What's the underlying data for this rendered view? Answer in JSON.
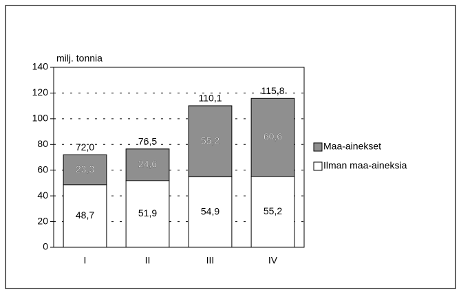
{
  "chart_data": {
    "type": "stacked_bar",
    "y_label": "milj. tonnia",
    "categories": [
      "I",
      "II",
      "III",
      "IV"
    ],
    "series": [
      {
        "name": "Ilman maa-aineksia",
        "color": "#ffffff",
        "values": [
          48.7,
          51.9,
          54.9,
          55.2
        ],
        "value_labels": [
          "48,7",
          "51,9",
          "54,9",
          "55,2"
        ]
      },
      {
        "name": "Maa-ainekset",
        "color": "#8f8f8f",
        "values": [
          23.3,
          24.6,
          55.2,
          60.6
        ],
        "value_labels": [
          "23,3",
          "24,6",
          "55,2",
          "60,6"
        ]
      }
    ],
    "totals": [
      72.0,
      76.5,
      110.1,
      115.8
    ],
    "total_labels": [
      "72,0",
      "76,5",
      "110,1",
      "115,8"
    ],
    "ylim": [
      0,
      140
    ],
    "yticks": [
      0,
      20,
      40,
      60,
      80,
      100,
      120,
      140
    ],
    "grid": true,
    "legend": "right"
  }
}
